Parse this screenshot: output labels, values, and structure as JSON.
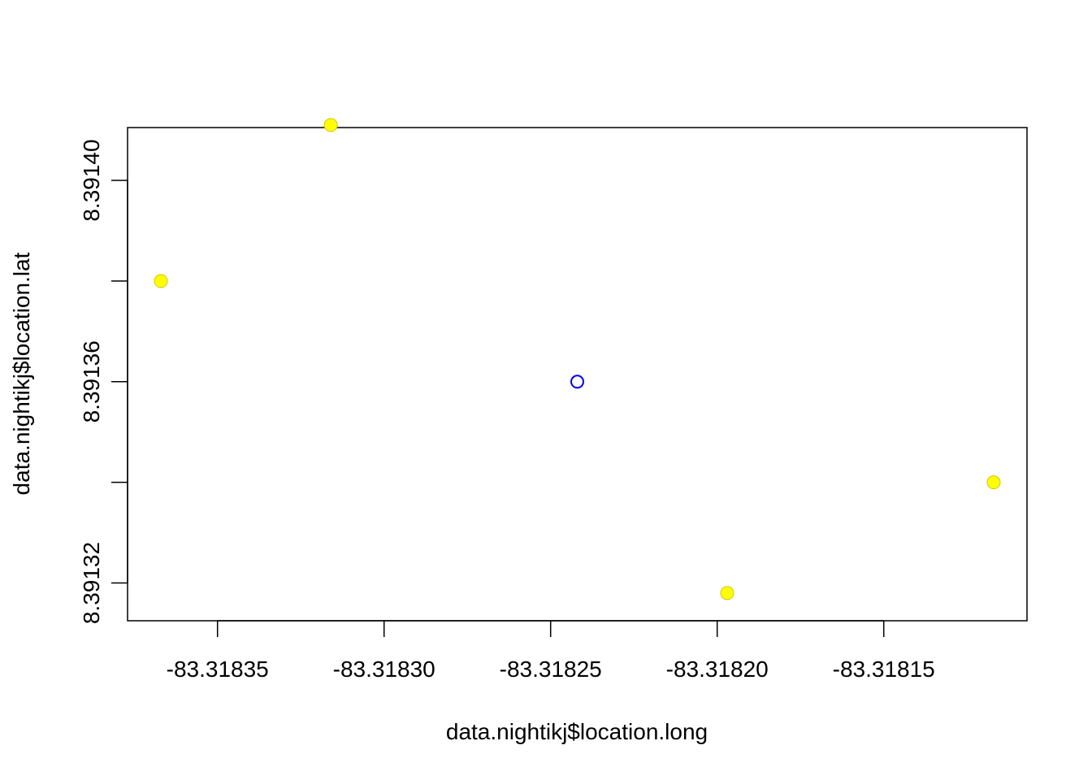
{
  "chart_data": {
    "type": "scatter",
    "title": "",
    "xlabel": "data.nightikj$location.long",
    "ylabel": "data.nightikj$location.lat",
    "xlim": [
      -83.318377,
      -83.318107
    ],
    "ylim": [
      8.3913125,
      8.3914105
    ],
    "x_ticks": [
      -83.31835,
      -83.3183,
      -83.31825,
      -83.3182,
      -83.31815
    ],
    "x_tick_labels": [
      "-83.31835",
      "-83.31830",
      "-83.31825",
      "-83.31820",
      "-83.31815"
    ],
    "y_ticks": [
      8.39132,
      8.39134,
      8.39136,
      8.39138,
      8.3914
    ],
    "y_tick_labels": [
      "8.39132",
      "",
      "8.39136",
      "",
      "8.39140"
    ],
    "grid": false,
    "legend": null,
    "series": [
      {
        "style": "filled",
        "color": "#FFFF00",
        "stroke": "#D4C400",
        "points": [
          {
            "x": -83.318367,
            "y": 8.39138
          },
          {
            "x": -83.318316,
            "y": 8.391411
          },
          {
            "x": -83.318197,
            "y": 8.391318
          },
          {
            "x": -83.318117,
            "y": 8.39134
          }
        ]
      },
      {
        "style": "open",
        "color": "#0000FF",
        "points": [
          {
            "x": -83.318242,
            "y": 8.39136
          }
        ]
      }
    ]
  }
}
